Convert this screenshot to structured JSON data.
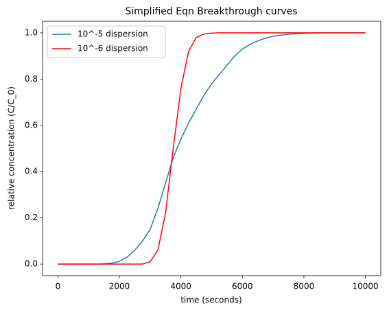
{
  "chart_data": {
    "type": "line",
    "title": "Simplified Eqn Breakthrough curves",
    "x_label": "time (seconds)",
    "y_label": "relative concentration (C/C_0)",
    "x": [
      0,
      250,
      500,
      750,
      1000,
      1250,
      1500,
      1750,
      2000,
      2250,
      2500,
      2750,
      3000,
      3250,
      3500,
      3750,
      4000,
      4250,
      4500,
      4750,
      5000,
      5250,
      5500,
      5750,
      6000,
      6250,
      6500,
      6750,
      7000,
      7250,
      7500,
      7750,
      8000,
      8250,
      8500,
      8750,
      9000,
      9250,
      9500,
      9750,
      10000
    ],
    "series": [
      {
        "name": "10^-5 dispersion",
        "color": "#1f77b4",
        "values": [
          0,
          0,
          0,
          0,
          0,
          0,
          0.001,
          0.004,
          0.012,
          0.03,
          0.06,
          0.1,
          0.15,
          0.24,
          0.35,
          0.46,
          0.54,
          0.61,
          0.67,
          0.73,
          0.78,
          0.82,
          0.86,
          0.9,
          0.93,
          0.95,
          0.965,
          0.977,
          0.985,
          0.99,
          0.994,
          0.996,
          0.998,
          0.999,
          1,
          1,
          1,
          1,
          1,
          1,
          1
        ]
      },
      {
        "name": "10^-6 dispersion",
        "color": "#ff0000",
        "values": [
          0,
          0,
          0,
          0,
          0,
          0,
          0,
          0,
          0,
          0,
          0,
          0,
          0.01,
          0.06,
          0.22,
          0.5,
          0.76,
          0.92,
          0.98,
          0.995,
          0.999,
          1,
          1,
          1,
          1,
          1,
          1,
          1,
          1,
          1,
          1,
          1,
          1,
          1,
          1,
          1,
          1,
          1,
          1,
          1,
          1
        ]
      }
    ],
    "xlim": [
      -500,
      10500
    ],
    "ylim": [
      -0.05,
      1.05
    ],
    "xticks": [
      0,
      2000,
      4000,
      6000,
      8000,
      10000
    ],
    "yticks": [
      {
        "value": 0,
        "label": "0.0"
      },
      0.2,
      0.4,
      0.6,
      0.8,
      {
        "value": 1,
        "label": "1.0"
      }
    ],
    "legend": "upper left",
    "grid": false
  }
}
